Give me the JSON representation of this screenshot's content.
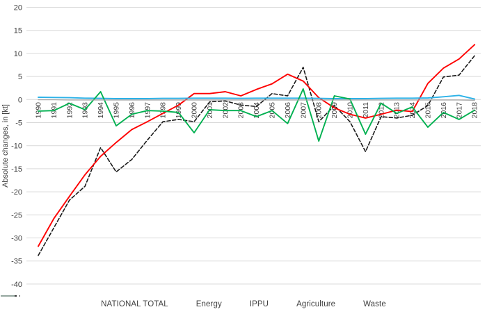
{
  "chart_data": {
    "type": "line",
    "title": "",
    "xlabel": "",
    "ylabel": "Absolute changes, in [kt]",
    "ylim": [
      -40,
      20
    ],
    "ytick_step": 5,
    "grid": "horizontal-only",
    "legend_position": "bottom",
    "categories": [
      "1990",
      "1991",
      "1992",
      "1993",
      "1994",
      "1995",
      "1996",
      "1997",
      "1998",
      "1999",
      "2000",
      "2001",
      "2002",
      "2003",
      "2004",
      "2005",
      "2006",
      "2007",
      "2008",
      "2009",
      "2010",
      "2011",
      "2012",
      "2013",
      "2014",
      "2015",
      "2016",
      "2017",
      "2018"
    ],
    "series": [
      {
        "name": "NATIONAL TOTAL",
        "color": "#1a1a1a",
        "style": "dashed",
        "values": [
          -33.8,
          -27.8,
          -21.8,
          -18.8,
          -10.4,
          -15.7,
          -13.0,
          -8.8,
          -4.8,
          -4.3,
          -4.8,
          -0.5,
          -0.3,
          -1.2,
          -1.5,
          1.3,
          0.8,
          7.0,
          -4.8,
          -1.3,
          -4.8,
          -11.3,
          -3.7,
          -4.0,
          -3.4,
          -1.3,
          4.9,
          5.3,
          9.5
        ]
      },
      {
        "name": "Energy",
        "color": "#fe0000",
        "style": "solid",
        "values": [
          -31.8,
          -25.8,
          -21.0,
          -16.3,
          -12.3,
          -9.3,
          -6.5,
          -4.8,
          -3.0,
          -1.2,
          1.3,
          1.3,
          1.7,
          0.8,
          2.2,
          3.4,
          5.5,
          4.0,
          0.4,
          -1.8,
          -3.2,
          -4.0,
          -3.2,
          -2.3,
          -2.6,
          3.5,
          6.8,
          8.8,
          11.9
        ]
      },
      {
        "name": "IPPU",
        "color": "#2cb2e8",
        "style": "solid",
        "values": [
          0.5,
          0.45,
          0.4,
          0.3,
          0.25,
          0.2,
          0.2,
          0.2,
          0.25,
          0.25,
          0.3,
          0.3,
          0.3,
          0.25,
          0.3,
          0.3,
          0.3,
          0.3,
          0.25,
          0.2,
          0.2,
          0.2,
          0.25,
          0.3,
          0.3,
          0.35,
          0.6,
          0.9,
          0.1
        ]
      },
      {
        "name": "Agriculture",
        "color": "#00b050",
        "style": "solid",
        "values": [
          -2.5,
          -2.4,
          -0.8,
          -2.2,
          1.7,
          -5.7,
          -3.2,
          -2.4,
          -2.5,
          -2.8,
          -7.2,
          -2.2,
          -2.4,
          -2.4,
          -3.7,
          -2.4,
          -5.2,
          2.3,
          -9.0,
          0.8,
          0.1,
          -7.5,
          -0.8,
          -3.0,
          -1.6,
          -6.0,
          -2.8,
          -4.3,
          -2.3
        ]
      },
      {
        "name": "Waste",
        "color": "#a6a6a6",
        "style": "solid",
        "values": [
          -0.05,
          -0.05,
          -0.1,
          -0.1,
          -0.1,
          -0.1,
          -0.1,
          -0.1,
          -0.1,
          -0.1,
          -0.1,
          -0.1,
          -0.1,
          -0.1,
          -0.1,
          -0.1,
          -0.1,
          -0.1,
          -0.1,
          -0.1,
          -0.1,
          -0.1,
          -0.1,
          -0.1,
          -0.1,
          -0.1,
          -0.1,
          -0.1,
          -0.15
        ]
      }
    ]
  },
  "colors": {
    "gridline": "#d9d9d9",
    "axis_text": "#404040",
    "background": "#ffffff"
  }
}
